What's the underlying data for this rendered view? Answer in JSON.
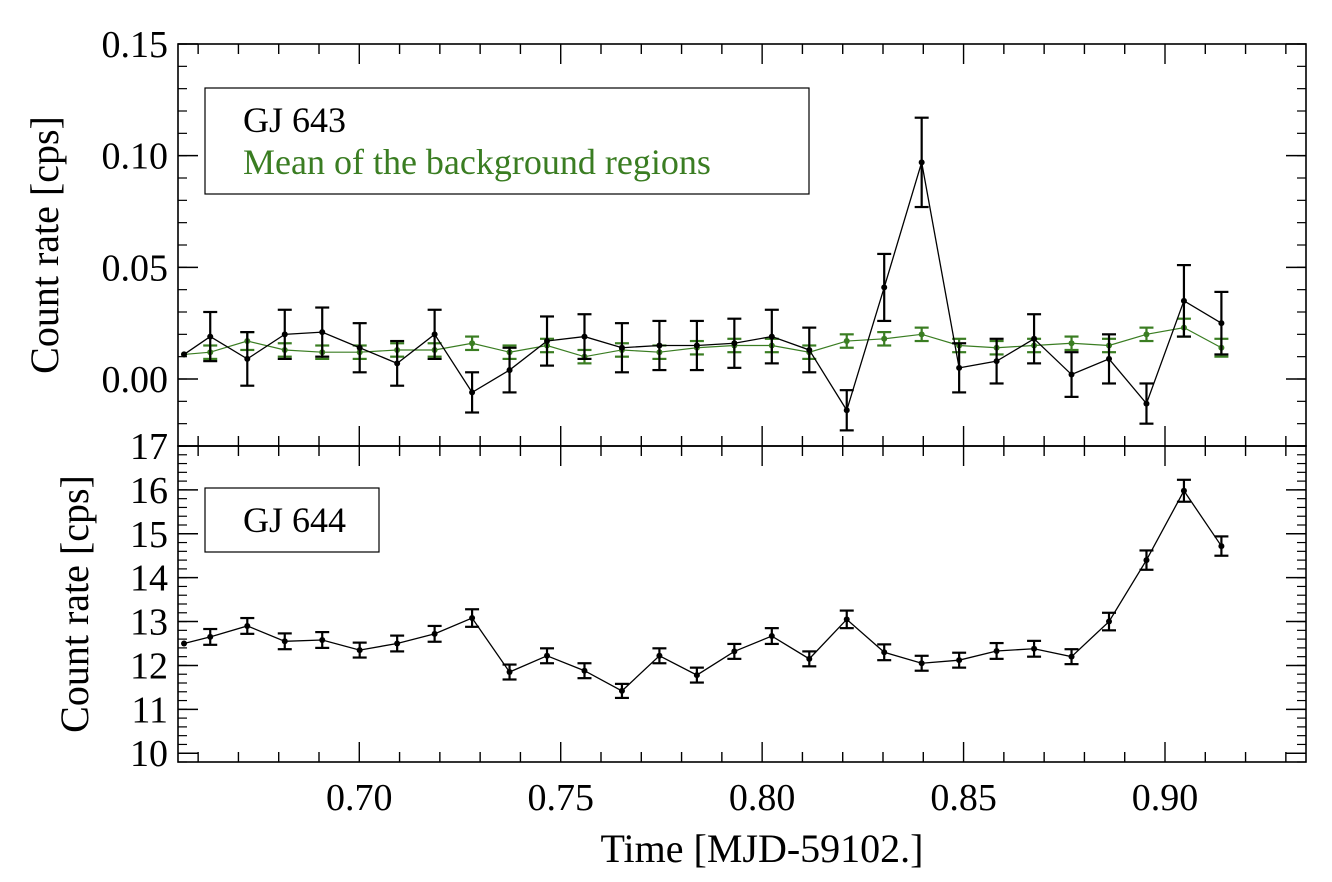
{
  "chart_data": [
    {
      "type": "line",
      "panel": "top",
      "ylabel": "Count rate [cps]",
      "xlim": [
        0.655,
        0.935
      ],
      "ylim": [
        -0.03,
        0.15
      ],
      "yticks": [
        0.0,
        0.05,
        0.1,
        0.15
      ],
      "ytick_labels": [
        "0.00",
        "0.05",
        "0.10",
        "0.15"
      ],
      "legend": [
        "GJ 643",
        "Mean of the background regions"
      ],
      "legend_position": "top-left",
      "series": [
        {
          "name": "GJ 643",
          "color": "#000000",
          "x": [
            0.6565,
            0.663,
            0.6722,
            0.6815,
            0.6908,
            0.7001,
            0.7094,
            0.7187,
            0.728,
            0.7373,
            0.7466,
            0.7559,
            0.7652,
            0.7745,
            0.7838,
            0.7931,
            0.8024,
            0.8117,
            0.821,
            0.8303,
            0.8396,
            0.8489,
            0.8582,
            0.8675,
            0.8768,
            0.8861,
            0.8954,
            0.9047,
            0.914
          ],
          "y": [
            0.011,
            0.019,
            0.009,
            0.02,
            0.021,
            0.014,
            0.007,
            0.02,
            -0.006,
            0.004,
            0.017,
            0.019,
            0.014,
            0.015,
            0.015,
            0.016,
            0.019,
            0.013,
            -0.014,
            0.041,
            0.097,
            0.005,
            0.008,
            0.018,
            0.002,
            0.009,
            -0.011,
            0.035,
            0.025
          ],
          "err": [
            0.0,
            0.011,
            0.012,
            0.011,
            0.011,
            0.011,
            0.01,
            0.011,
            0.009,
            0.01,
            0.011,
            0.01,
            0.011,
            0.011,
            0.011,
            0.011,
            0.012,
            0.01,
            0.009,
            0.015,
            0.02,
            0.011,
            0.01,
            0.011,
            0.01,
            0.011,
            0.009,
            0.016,
            0.014
          ]
        },
        {
          "name": "Mean of the background regions",
          "color": "#3a7d22",
          "x": [
            0.6565,
            0.663,
            0.6722,
            0.6815,
            0.6908,
            0.7001,
            0.7094,
            0.7187,
            0.728,
            0.7373,
            0.7466,
            0.7559,
            0.7652,
            0.7745,
            0.7838,
            0.7931,
            0.8024,
            0.8117,
            0.821,
            0.8303,
            0.8396,
            0.8489,
            0.8582,
            0.8675,
            0.8768,
            0.8861,
            0.8954,
            0.9047,
            0.914
          ],
          "y": [
            0.011,
            0.012,
            0.017,
            0.013,
            0.012,
            0.012,
            0.013,
            0.013,
            0.016,
            0.012,
            0.015,
            0.01,
            0.013,
            0.012,
            0.014,
            0.015,
            0.015,
            0.012,
            0.017,
            0.018,
            0.02,
            0.015,
            0.014,
            0.015,
            0.016,
            0.015,
            0.02,
            0.023,
            0.014
          ],
          "err": [
            0.0,
            0.003,
            0.004,
            0.003,
            0.003,
            0.003,
            0.003,
            0.003,
            0.003,
            0.003,
            0.003,
            0.003,
            0.003,
            0.003,
            0.003,
            0.003,
            0.003,
            0.003,
            0.003,
            0.003,
            0.003,
            0.003,
            0.003,
            0.003,
            0.003,
            0.003,
            0.003,
            0.004,
            0.004
          ]
        }
      ]
    },
    {
      "type": "line",
      "panel": "bottom",
      "title": "",
      "xlabel": "Time [MJD-59102.]",
      "ylabel": "Count rate [cps]",
      "xlim": [
        0.655,
        0.935
      ],
      "ylim": [
        9.8,
        17.0
      ],
      "xticks": [
        0.7,
        0.75,
        0.8,
        0.85,
        0.9
      ],
      "xtick_labels": [
        "0.70",
        "0.75",
        "0.80",
        "0.85",
        "0.90"
      ],
      "yticks": [
        10,
        11,
        12,
        13,
        14,
        15,
        16,
        17
      ],
      "ytick_labels": [
        "10",
        "11",
        "12",
        "13",
        "14",
        "15",
        "16",
        "17"
      ],
      "legend": [
        "GJ 644"
      ],
      "legend_position": "top-left",
      "series": [
        {
          "name": "GJ 644",
          "color": "#000000",
          "x": [
            0.6565,
            0.663,
            0.6722,
            0.6815,
            0.6908,
            0.7001,
            0.7094,
            0.7187,
            0.728,
            0.7373,
            0.7466,
            0.7559,
            0.7652,
            0.7745,
            0.7838,
            0.7931,
            0.8024,
            0.8117,
            0.821,
            0.8303,
            0.8396,
            0.8489,
            0.8582,
            0.8675,
            0.8768,
            0.8861,
            0.8954,
            0.9047,
            0.914
          ],
          "y": [
            12.5,
            12.65,
            12.9,
            12.55,
            12.58,
            12.35,
            12.5,
            12.72,
            13.08,
            11.85,
            12.22,
            11.88,
            11.42,
            12.22,
            11.78,
            12.32,
            12.67,
            12.15,
            13.05,
            12.3,
            12.05,
            12.12,
            12.33,
            12.38,
            12.2,
            13.0,
            14.4,
            15.98,
            14.72
          ],
          "err": [
            0.0,
            0.18,
            0.18,
            0.18,
            0.18,
            0.17,
            0.18,
            0.18,
            0.2,
            0.17,
            0.17,
            0.17,
            0.16,
            0.17,
            0.17,
            0.17,
            0.18,
            0.17,
            0.2,
            0.18,
            0.17,
            0.17,
            0.18,
            0.18,
            0.17,
            0.2,
            0.22,
            0.25,
            0.22
          ]
        }
      ]
    }
  ]
}
